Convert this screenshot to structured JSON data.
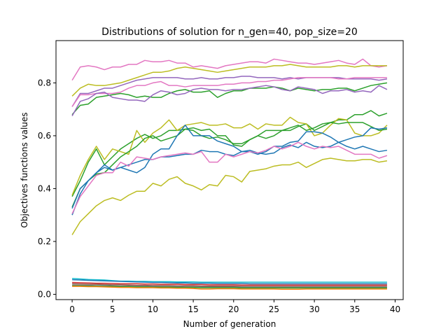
{
  "chart_data": {
    "type": "line",
    "title": "Distributions of solution for n_gen=40, pop_size=20",
    "xlabel": "Number of generation",
    "ylabel": "Objectives functions values",
    "xlim": [
      -2,
      41
    ],
    "ylim": [
      -0.02,
      0.96
    ],
    "xticks": [
      "0",
      "5",
      "10",
      "15",
      "20",
      "25",
      "30",
      "35",
      "40"
    ],
    "xtick_values": [
      0,
      5,
      10,
      15,
      20,
      25,
      30,
      35,
      40
    ],
    "yticks": [
      "0.0",
      "0.2",
      "0.4",
      "0.6",
      "0.8"
    ],
    "ytick_values": [
      0.0,
      0.2,
      0.4,
      0.6,
      0.8
    ],
    "grid": false,
    "series": [
      {
        "color": "#e377c2",
        "values": [
          0.81,
          0.86,
          0.865,
          0.86,
          0.85,
          0.86,
          0.86,
          0.87,
          0.87,
          0.885,
          0.88,
          0.88,
          0.885,
          0.875,
          0.875,
          0.86,
          0.865,
          0.86,
          0.855,
          0.865,
          0.87,
          0.875,
          0.88,
          0.88,
          0.875,
          0.89,
          0.885,
          0.88,
          0.875,
          0.875,
          0.87,
          0.875,
          0.88,
          0.885,
          0.875,
          0.87,
          0.89,
          0.865,
          0.86,
          0.865
        ]
      },
      {
        "color": "#bcbd22",
        "values": [
          0.75,
          0.78,
          0.795,
          0.79,
          0.79,
          0.795,
          0.8,
          0.81,
          0.82,
          0.83,
          0.84,
          0.84,
          0.845,
          0.855,
          0.86,
          0.855,
          0.85,
          0.845,
          0.84,
          0.845,
          0.85,
          0.855,
          0.86,
          0.86,
          0.86,
          0.865,
          0.865,
          0.87,
          0.865,
          0.86,
          0.86,
          0.86,
          0.86,
          0.865,
          0.865,
          0.86,
          0.865,
          0.865,
          0.865,
          0.865
        ]
      },
      {
        "color": "#9467bd",
        "values": [
          0.71,
          0.76,
          0.76,
          0.77,
          0.78,
          0.78,
          0.79,
          0.8,
          0.81,
          0.815,
          0.82,
          0.82,
          0.82,
          0.82,
          0.815,
          0.815,
          0.82,
          0.815,
          0.815,
          0.82,
          0.82,
          0.825,
          0.825,
          0.82,
          0.82,
          0.82,
          0.815,
          0.82,
          0.815,
          0.82,
          0.82,
          0.82,
          0.82,
          0.82,
          0.815,
          0.815,
          0.815,
          0.815,
          0.81,
          0.815
        ]
      },
      {
        "color": "#e377c2",
        "values": [
          0.71,
          0.755,
          0.755,
          0.76,
          0.76,
          0.76,
          0.765,
          0.78,
          0.79,
          0.79,
          0.8,
          0.805,
          0.79,
          0.79,
          0.785,
          0.79,
          0.79,
          0.79,
          0.79,
          0.795,
          0.795,
          0.8,
          0.8,
          0.805,
          0.805,
          0.81,
          0.81,
          0.815,
          0.82,
          0.82,
          0.82,
          0.82,
          0.82,
          0.815,
          0.815,
          0.82,
          0.82,
          0.82,
          0.82,
          0.82
        ]
      },
      {
        "color": "#2ca02c",
        "values": [
          0.68,
          0.715,
          0.72,
          0.745,
          0.75,
          0.755,
          0.76,
          0.755,
          0.745,
          0.75,
          0.745,
          0.745,
          0.76,
          0.77,
          0.775,
          0.765,
          0.765,
          0.77,
          0.745,
          0.76,
          0.77,
          0.77,
          0.78,
          0.78,
          0.78,
          0.785,
          0.78,
          0.77,
          0.78,
          0.775,
          0.77,
          0.775,
          0.775,
          0.78,
          0.78,
          0.77,
          0.78,
          0.79,
          0.795,
          0.8
        ]
      },
      {
        "color": "#9467bd",
        "values": [
          0.675,
          0.73,
          0.74,
          0.76,
          0.765,
          0.745,
          0.74,
          0.735,
          0.735,
          0.73,
          0.755,
          0.77,
          0.765,
          0.755,
          0.76,
          0.775,
          0.78,
          0.775,
          0.775,
          0.77,
          0.775,
          0.775,
          0.78,
          0.785,
          0.79,
          0.785,
          0.775,
          0.77,
          0.785,
          0.78,
          0.775,
          0.76,
          0.77,
          0.77,
          0.775,
          0.765,
          0.77,
          0.765,
          0.79,
          0.775
        ]
      },
      {
        "color": "#2ca02c",
        "values": [
          0.37,
          0.43,
          0.5,
          0.55,
          0.49,
          0.52,
          0.55,
          0.57,
          0.59,
          0.605,
          0.59,
          0.6,
          0.62,
          0.62,
          0.625,
          0.63,
          0.62,
          0.625,
          0.6,
          0.6,
          0.565,
          0.56,
          0.585,
          0.6,
          0.62,
          0.62,
          0.62,
          0.62,
          0.635,
          0.645,
          0.62,
          0.635,
          0.65,
          0.66,
          0.66,
          0.68,
          0.68,
          0.695,
          0.675,
          0.685
        ]
      },
      {
        "color": "#bcbd22",
        "values": [
          0.375,
          0.45,
          0.51,
          0.56,
          0.51,
          0.55,
          0.54,
          0.53,
          0.62,
          0.575,
          0.61,
          0.63,
          0.66,
          0.62,
          0.64,
          0.645,
          0.65,
          0.64,
          0.64,
          0.645,
          0.63,
          0.63,
          0.645,
          0.625,
          0.645,
          0.64,
          0.64,
          0.67,
          0.65,
          0.645,
          0.6,
          0.61,
          0.64,
          0.665,
          0.66,
          0.61,
          0.6,
          0.6,
          0.61,
          0.64
        ]
      },
      {
        "color": "#2ca02c",
        "values": [
          0.33,
          0.4,
          0.43,
          0.455,
          0.46,
          0.49,
          0.52,
          0.54,
          0.56,
          0.59,
          0.6,
          0.58,
          0.59,
          0.6,
          0.625,
          0.62,
          0.6,
          0.59,
          0.595,
          0.585,
          0.57,
          0.57,
          0.585,
          0.6,
          0.59,
          0.6,
          0.62,
          0.63,
          0.64,
          0.62,
          0.63,
          0.645,
          0.65,
          0.645,
          0.65,
          0.65,
          0.65,
          0.635,
          0.62,
          0.625
        ]
      },
      {
        "color": "#1f77b4",
        "values": [
          0.3,
          0.38,
          0.43,
          0.46,
          0.48,
          0.47,
          0.48,
          0.47,
          0.46,
          0.48,
          0.53,
          0.55,
          0.55,
          0.6,
          0.64,
          0.6,
          0.6,
          0.6,
          0.58,
          0.57,
          0.56,
          0.54,
          0.54,
          0.53,
          0.54,
          0.56,
          0.56,
          0.575,
          0.58,
          0.615,
          0.615,
          0.61,
          0.595,
          0.575,
          0.56,
          0.55,
          0.56,
          0.55,
          0.54,
          0.545
        ]
      },
      {
        "color": "#1f77b4",
        "values": [
          0.325,
          0.4,
          0.43,
          0.46,
          0.49,
          0.47,
          0.48,
          0.49,
          0.5,
          0.51,
          0.51,
          0.52,
          0.52,
          0.525,
          0.53,
          0.53,
          0.545,
          0.54,
          0.54,
          0.53,
          0.525,
          0.54,
          0.545,
          0.535,
          0.53,
          0.535,
          0.555,
          0.565,
          0.555,
          0.575,
          0.56,
          0.555,
          0.56,
          0.575,
          0.585,
          0.595,
          0.6,
          0.63,
          0.625,
          0.63
        ]
      },
      {
        "color": "#e377c2",
        "values": [
          0.305,
          0.37,
          0.41,
          0.45,
          0.46,
          0.46,
          0.5,
          0.485,
          0.52,
          0.515,
          0.51,
          0.52,
          0.525,
          0.53,
          0.535,
          0.53,
          0.54,
          0.5,
          0.5,
          0.53,
          0.52,
          0.53,
          0.54,
          0.535,
          0.545,
          0.56,
          0.55,
          0.56,
          0.575,
          0.56,
          0.55,
          0.56,
          0.555,
          0.56,
          0.545,
          0.53,
          0.53,
          0.53,
          0.515,
          0.525
        ]
      },
      {
        "color": "#bcbd22",
        "values": [
          0.225,
          0.275,
          0.305,
          0.335,
          0.355,
          0.365,
          0.355,
          0.375,
          0.39,
          0.39,
          0.42,
          0.41,
          0.435,
          0.445,
          0.42,
          0.41,
          0.395,
          0.415,
          0.41,
          0.45,
          0.445,
          0.425,
          0.465,
          0.47,
          0.475,
          0.485,
          0.49,
          0.49,
          0.5,
          0.48,
          0.495,
          0.51,
          0.515,
          0.51,
          0.505,
          0.505,
          0.51,
          0.51,
          0.5,
          0.505
        ]
      },
      {
        "color": "#17becf",
        "values": [
          0.06,
          0.058,
          0.056,
          0.055,
          0.054,
          0.052,
          0.05,
          0.05,
          0.049,
          0.049,
          0.048,
          0.048,
          0.048,
          0.047,
          0.047,
          0.047,
          0.046,
          0.046,
          0.046,
          0.046,
          0.046,
          0.046,
          0.046,
          0.046,
          0.046,
          0.046,
          0.046,
          0.046,
          0.046,
          0.046,
          0.046,
          0.046,
          0.046,
          0.046,
          0.046,
          0.046,
          0.046,
          0.046,
          0.046,
          0.046
        ]
      },
      {
        "color": "#1f77b4",
        "values": [
          0.055,
          0.054,
          0.053,
          0.052,
          0.051,
          0.05,
          0.049,
          0.048,
          0.047,
          0.046,
          0.045,
          0.045,
          0.044,
          0.043,
          0.043,
          0.042,
          0.042,
          0.042,
          0.041,
          0.041,
          0.041,
          0.041,
          0.04,
          0.04,
          0.04,
          0.04,
          0.04,
          0.04,
          0.04,
          0.04,
          0.04,
          0.04,
          0.04,
          0.04,
          0.04,
          0.04,
          0.04,
          0.04,
          0.04,
          0.04
        ]
      },
      {
        "color": "#d62728",
        "values": [
          0.045,
          0.044,
          0.043,
          0.042,
          0.042,
          0.041,
          0.04,
          0.04,
          0.04,
          0.039,
          0.039,
          0.038,
          0.038,
          0.038,
          0.037,
          0.037,
          0.037,
          0.036,
          0.036,
          0.036,
          0.036,
          0.035,
          0.035,
          0.035,
          0.035,
          0.035,
          0.035,
          0.035,
          0.035,
          0.035,
          0.035,
          0.035,
          0.035,
          0.035,
          0.035,
          0.035,
          0.035,
          0.035,
          0.035,
          0.035
        ]
      },
      {
        "color": "#8c564b",
        "values": [
          0.04,
          0.039,
          0.038,
          0.038,
          0.037,
          0.036,
          0.036,
          0.035,
          0.034,
          0.034,
          0.033,
          0.033,
          0.033,
          0.032,
          0.032,
          0.032,
          0.031,
          0.031,
          0.031,
          0.031,
          0.031,
          0.03,
          0.03,
          0.03,
          0.03,
          0.03,
          0.03,
          0.03,
          0.03,
          0.03,
          0.03,
          0.03,
          0.03,
          0.03,
          0.03,
          0.03,
          0.03,
          0.03,
          0.03,
          0.03
        ]
      },
      {
        "color": "#7f7f7f",
        "values": [
          0.035,
          0.034,
          0.034,
          0.033,
          0.033,
          0.032,
          0.031,
          0.031,
          0.03,
          0.03,
          0.03,
          0.029,
          0.029,
          0.029,
          0.028,
          0.028,
          0.028,
          0.027,
          0.027,
          0.027,
          0.027,
          0.027,
          0.026,
          0.026,
          0.026,
          0.026,
          0.026,
          0.026,
          0.026,
          0.026,
          0.026,
          0.026,
          0.026,
          0.026,
          0.026,
          0.026,
          0.026,
          0.026,
          0.026,
          0.026
        ]
      },
      {
        "color": "#2ca02c",
        "values": [
          0.032,
          0.032,
          0.031,
          0.031,
          0.03,
          0.03,
          0.029,
          0.029,
          0.028,
          0.028,
          0.027,
          0.027,
          0.027,
          0.026,
          0.026,
          0.026,
          0.025,
          0.025,
          0.025,
          0.025,
          0.025,
          0.024,
          0.024,
          0.024,
          0.024,
          0.024,
          0.024,
          0.024,
          0.024,
          0.024,
          0.024,
          0.024,
          0.024,
          0.024,
          0.024,
          0.024,
          0.024,
          0.024,
          0.024,
          0.024
        ]
      },
      {
        "color": "#ff7f0e",
        "values": [
          0.03,
          0.03,
          0.029,
          0.029,
          0.028,
          0.027,
          0.026,
          0.026,
          0.025,
          0.025,
          0.025,
          0.024,
          0.024,
          0.023,
          0.023,
          0.022,
          0.02,
          0.02,
          0.021,
          0.021,
          0.021,
          0.02,
          0.02,
          0.02,
          0.02,
          0.02,
          0.019,
          0.019,
          0.019,
          0.02,
          0.02,
          0.02,
          0.02,
          0.02,
          0.02,
          0.02,
          0.02,
          0.02,
          0.02,
          0.02
        ]
      }
    ]
  }
}
